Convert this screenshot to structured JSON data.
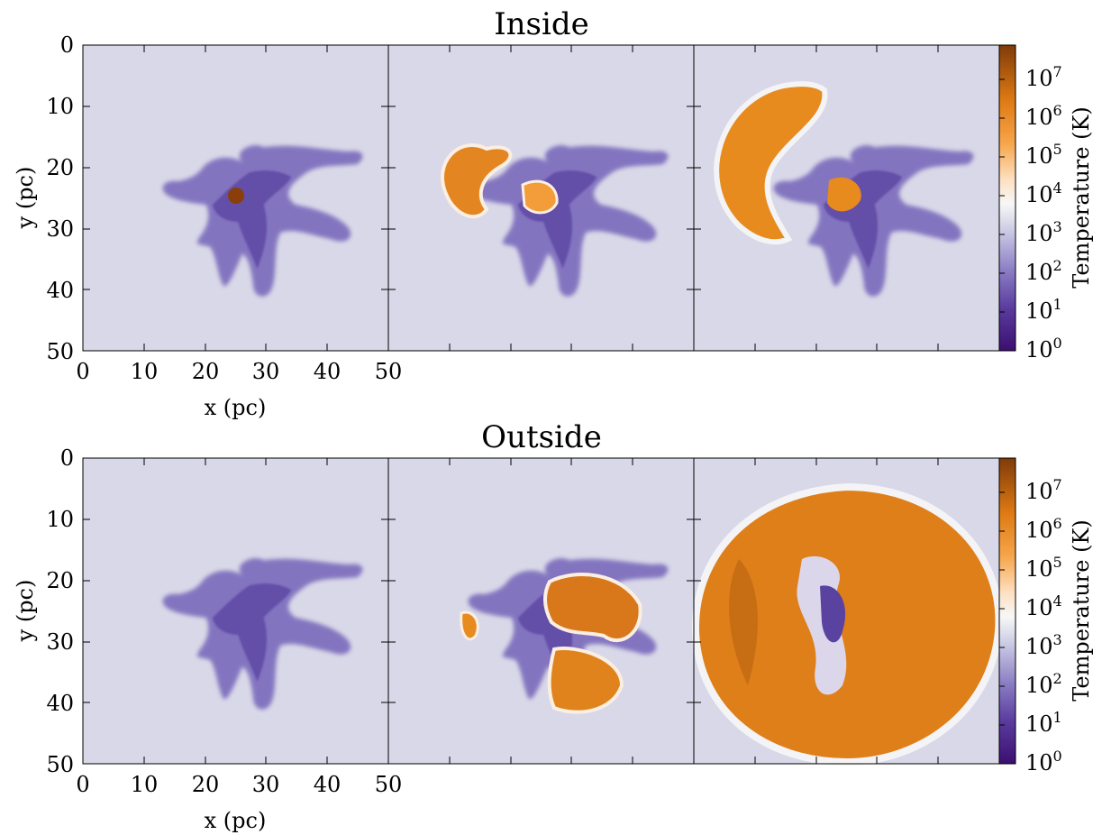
{
  "colors": {
    "background": "#d8d8e8",
    "cold": "#3b0f70",
    "cool": "#6f5ab5",
    "warm": "#f6f0ee",
    "hot": "#e88b1f",
    "hottest": "#7f3b08"
  },
  "chart_data": [
    {
      "type": "heatmap",
      "title": "Inside",
      "xlabel": "x (pc)",
      "ylabel": "y (pc)",
      "xlim": [
        0,
        50
      ],
      "ylim": [
        0,
        50
      ],
      "y_inverted": true,
      "x_ticks": [
        "0",
        "10",
        "20",
        "30",
        "40",
        "50"
      ],
      "y_ticks": [
        "0",
        "10",
        "20",
        "30",
        "40",
        "50"
      ],
      "panels": 3,
      "colorbar": {
        "label": "Temperature (K)",
        "scale": "log",
        "range": [
          1,
          70000000
        ],
        "tick_exponents": [
          "0",
          "1",
          "2",
          "3",
          "4",
          "5",
          "6",
          "7"
        ]
      }
    },
    {
      "type": "heatmap",
      "title": "Outside",
      "xlabel": "x (pc)",
      "ylabel": "y (pc)",
      "xlim": [
        0,
        50
      ],
      "ylim": [
        0,
        50
      ],
      "y_inverted": true,
      "x_ticks": [
        "0",
        "10",
        "20",
        "30",
        "40",
        "50"
      ],
      "y_ticks": [
        "0",
        "10",
        "20",
        "30",
        "40",
        "50"
      ],
      "panels": 3,
      "colorbar": {
        "label": "Temperature (K)",
        "scale": "log",
        "range": [
          1,
          70000000
        ],
        "tick_exponents": [
          "0",
          "1",
          "2",
          "3",
          "4",
          "5",
          "6",
          "7"
        ]
      }
    }
  ]
}
